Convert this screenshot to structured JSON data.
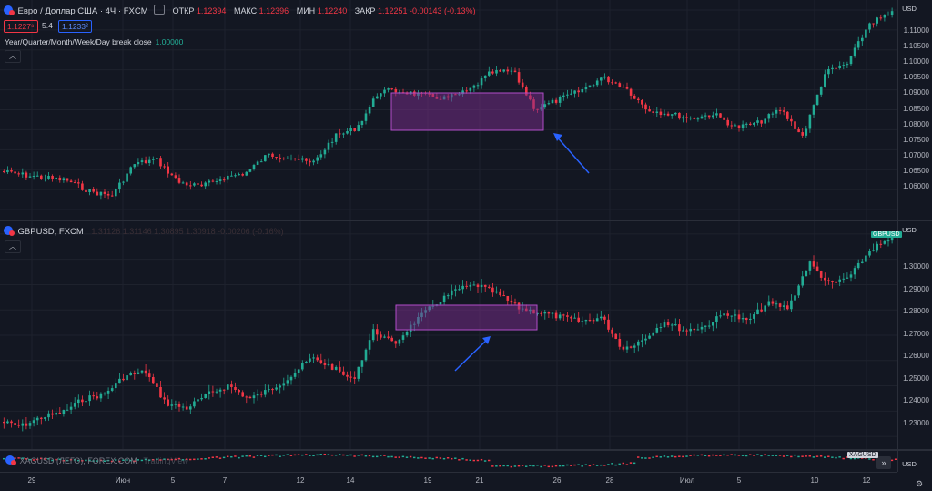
{
  "pane1": {
    "symbol": "Евро / Доллар США · 4Ч · FXCM",
    "ohlc": {
      "open_label": "ОТКР",
      "open": "1.12394",
      "high_label": "МАКС",
      "high": "1.12396",
      "low_label": "МИН",
      "low": "1.12240",
      "close_label": "ЗАКР",
      "close": "1.12251",
      "change": "-0.00143 (-0.13%)"
    },
    "bid": "1.1227⁸",
    "spread": "5.4",
    "ask": "1.1233²",
    "indicator_label": "Year/Quarter/Month/Week/Day break close",
    "indicator_value": "1.00000",
    "currency": "USD",
    "price_ticks": [
      "1.11000",
      "1.10500",
      "1.10000",
      "1.09500",
      "1.09000",
      "1.08500",
      "1.08000",
      "1.07500",
      "1.07000",
      "1.06500",
      "1.06000"
    ]
  },
  "pane2": {
    "symbol": "GBPUSD, FXCM",
    "ohlc_faded": "1.31126  1.31146  1.30895  1.30918  -0.00206 (-0.16%)",
    "currency": "USD",
    "tag": "GBPUSD",
    "price_ticks": [
      "1.30000",
      "1.29000",
      "1.28000",
      "1.27000",
      "1.26000",
      "1.25000",
      "1.24000",
      "1.23000"
    ]
  },
  "pane3": {
    "symbol": "XAGUSD (ЛЕГО), FOREX.COM",
    "tag": "XAGUSD",
    "watermark": "TradingView",
    "currency": "USD"
  },
  "time_axis": [
    "29",
    "Июн",
    "5",
    "7",
    "12",
    "14",
    "19",
    "21",
    "26",
    "28",
    "Июл",
    "5",
    "10",
    "12"
  ],
  "icons": {
    "settings": "gear-icon",
    "collapse": "chevron-up-icon",
    "nav": "double-chevron-right-icon"
  },
  "colors": {
    "up": "#22ab94",
    "down": "#f23645",
    "highlight": "#7b2d8e",
    "arrow": "#2962ff",
    "background": "#131722"
  }
}
